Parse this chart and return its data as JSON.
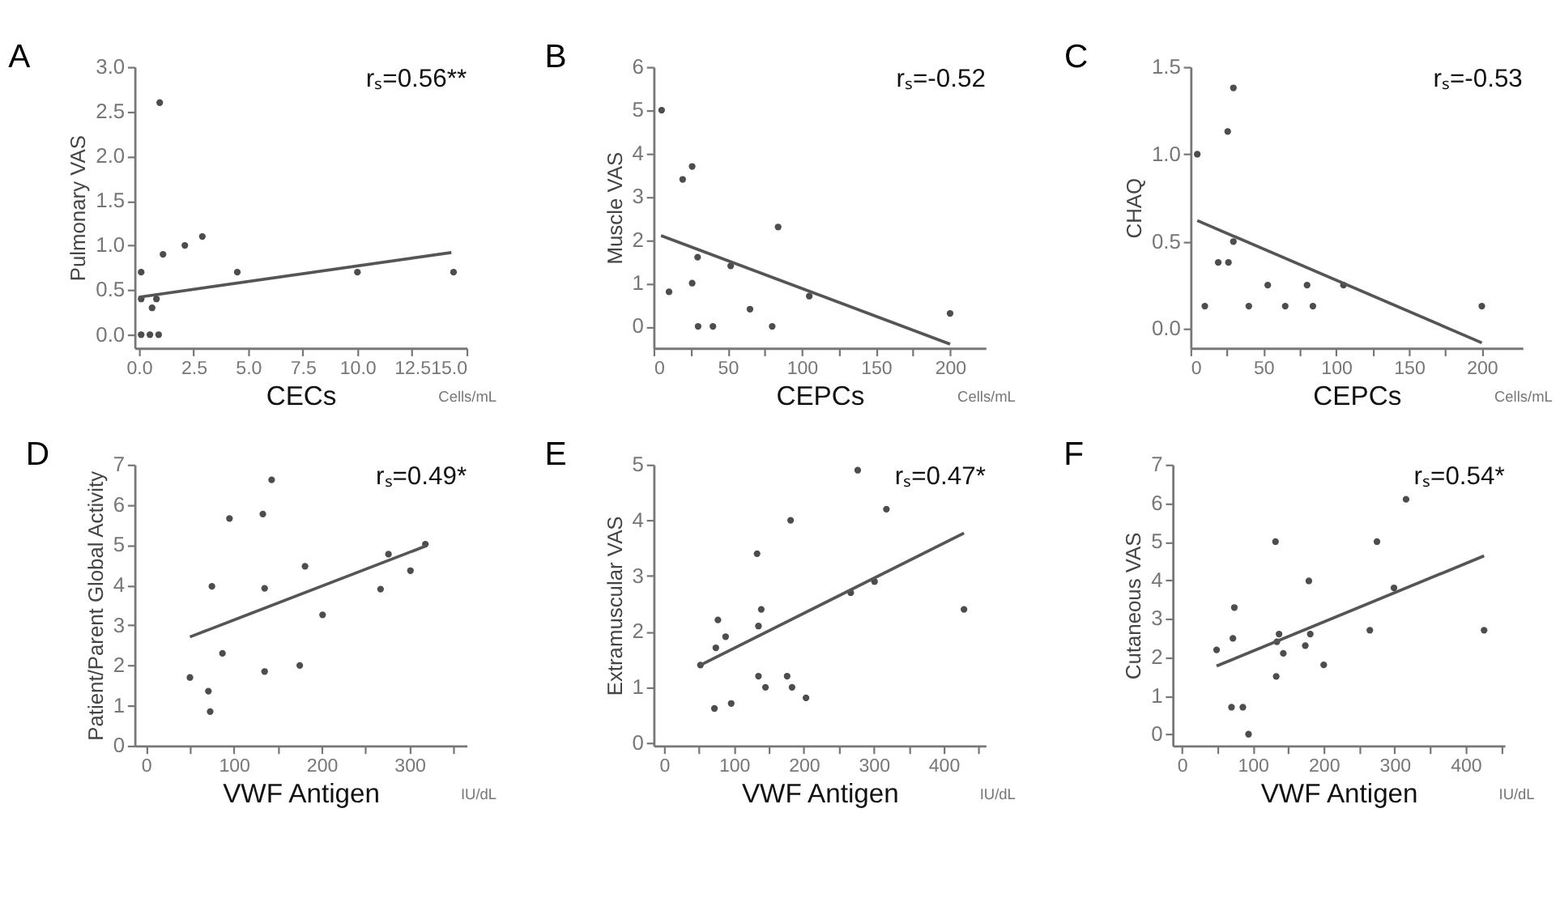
{
  "chart_data": [
    {
      "type": "scatter",
      "title": "A",
      "xlabel": "CECs",
      "ylabel": "Pulmonary VAS",
      "annotations": [
        "rₛ=0.56**",
        "Cells/mL"
      ],
      "marker": "circle",
      "grid": false,
      "xlim": [
        -0.2,
        15
      ],
      "xticks": [
        {
          "value": 0,
          "label": "0.0"
        },
        2.5,
        {
          "value": 5,
          "label": "5.0"
        },
        7.5,
        {
          "value": 10,
          "label": "10.0"
        },
        12.5,
        {
          "value": 15,
          "label": "15.0"
        }
      ],
      "ylim": [
        -0.15,
        3.0
      ],
      "yticks": [
        {
          "value": 0,
          "label": "0.0"
        },
        0.5,
        {
          "value": 1,
          "label": "1.0"
        },
        1.5,
        {
          "value": 2,
          "label": "2.0"
        },
        2.5,
        {
          "value": 3,
          "label": "3.0"
        }
      ],
      "series": [
        {
          "color": "#4d4d4d",
          "x": [
            0.1,
            0.1,
            0.1,
            0.5,
            0.6,
            0.9,
            0.8,
            0.95,
            1.1,
            2.1,
            2.9,
            4.5,
            10.0,
            14.4
          ],
          "values": [
            0.7,
            0.4,
            0,
            0,
            0.3,
            0,
            0.4,
            2.6,
            0.9,
            1.0,
            1.1,
            0.7,
            0.7,
            0.7
          ]
        },
        {
          "type": "line",
          "marker": "none",
          "color": "#555555",
          "x": [
            0,
            14.3
          ],
          "values": [
            0.42,
            0.92
          ]
        }
      ]
    },
    {
      "type": "scatter",
      "title": "B",
      "xlabel": "CEPCs",
      "ylabel": "Muscle VAS",
      "annotations": [
        "rₛ=-0.52",
        "Cells/mL"
      ],
      "marker": "circle",
      "grid": false,
      "xlim": [
        0,
        224
      ],
      "xticks": [
        0,
        {
          "value": 25,
          "label": null
        },
        50,
        {
          "value": 75,
          "label": null
        },
        100,
        {
          "value": 125,
          "label": null
        },
        150,
        {
          "value": 175,
          "label": null
        },
        200
      ],
      "ylim": [
        -0.5,
        6
      ],
      "yticks": [
        0,
        1,
        2,
        3,
        4,
        5,
        6
      ],
      "series": [
        {
          "color": "#4d4d4d",
          "x": [
            5.4,
            10.4,
            19.6,
            26,
            26,
            29.7,
            30,
            40,
            52,
            65,
            80,
            84,
            105,
            200
          ],
          "values": [
            5.0,
            0.8,
            3.4,
            3.7,
            1.0,
            1.6,
            0,
            0,
            1.4,
            0.4,
            0,
            2.3,
            0.7,
            0.3
          ]
        },
        {
          "type": "line",
          "marker": "none",
          "color": "#555555",
          "x": [
            5,
            200
          ],
          "values": [
            2.1,
            -0.41
          ]
        }
      ]
    },
    {
      "type": "scatter",
      "title": "C",
      "xlabel": "CEPCs",
      "ylabel": "CHAQ",
      "annotations": [
        "rₛ=-0.53",
        "Cells/mL"
      ],
      "marker": "circle",
      "grid": false,
      "xlim": [
        0,
        228
      ],
      "xticks": [
        0,
        {
          "value": 25,
          "label": null
        },
        50,
        {
          "value": 75,
          "label": null
        },
        100,
        {
          "value": 125,
          "label": null
        },
        150,
        {
          "value": 175,
          "label": null
        },
        200
      ],
      "ylim": [
        -0.11,
        1.5
      ],
      "yticks": [
        {
          "value": 0,
          "label": "0.0"
        },
        0.5,
        {
          "value": 1,
          "label": "1.0"
        },
        1.5
      ],
      "series": [
        {
          "color": "#4d4d4d",
          "x": [
            4.6,
            9.8,
            19,
            26,
            25.5,
            29.4,
            29.4,
            40,
            53,
            65,
            80,
            84,
            105,
            200
          ],
          "values": [
            1.0,
            0.13,
            0.38,
            0.38,
            1.13,
            1.38,
            0.5,
            0.13,
            0.25,
            0.13,
            0.25,
            0.13,
            0.25,
            0.13
          ]
        },
        {
          "type": "line",
          "marker": "none",
          "color": "#555555",
          "x": [
            4.6,
            200
          ],
          "values": [
            0.62,
            -0.08
          ]
        }
      ]
    },
    {
      "type": "scatter",
      "title": "D",
      "xlabel": "VWF Antigen",
      "ylabel": "Patient/Parent Global Activity",
      "annotations": [
        "rₛ=0.49*",
        "IU/dL"
      ],
      "marker": "circle",
      "grid": false,
      "xlim": [
        -13,
        365
      ],
      "xticks": [
        0,
        {
          "value": 50,
          "label": null
        },
        100,
        {
          "value": 150,
          "label": null
        },
        200,
        {
          "value": 250,
          "label": null
        },
        300,
        {
          "value": 350,
          "label": null
        }
      ],
      "ylim": [
        0,
        7
      ],
      "yticks": [
        0,
        1,
        2,
        3,
        4,
        5,
        6,
        7
      ],
      "series": [
        {
          "color": "#4d4d4d",
          "x": [
            50,
            71,
            73,
            75,
            87,
            95,
            133,
            143,
            135,
            135,
            175,
            181,
            201,
            267,
            276,
            301,
            318
          ],
          "values": [
            1.7,
            1.36,
            0.85,
            3.97,
            2.3,
            5.66,
            5.77,
            6.62,
            3.92,
            1.85,
            2.0,
            4.47,
            3.26,
            3.9,
            4.77,
            4.36,
            5.02
          ]
        },
        {
          "type": "line",
          "marker": "none",
          "color": "#555555",
          "x": [
            50,
            318
          ],
          "values": [
            2.71,
            4.97
          ]
        }
      ]
    },
    {
      "type": "scatter",
      "title": "E",
      "xlabel": "VWF Antigen",
      "ylabel": "Extramuscular VAS",
      "annotations": [
        "rₛ=0.47*",
        "IU/dL"
      ],
      "marker": "circle",
      "grid": false,
      "xlim": [
        -15,
        460
      ],
      "xticks": [
        0,
        {
          "value": 50,
          "label": null
        },
        100,
        {
          "value": 150,
          "label": null
        },
        200,
        {
          "value": 250,
          "label": null
        },
        300,
        {
          "value": 350,
          "label": null
        },
        400,
        {
          "value": 450,
          "label": null
        }
      ],
      "ylim": [
        -0.05,
        5
      ],
      "yticks": [
        0,
        1,
        2,
        3,
        4,
        5
      ],
      "series": [
        {
          "color": "#4d4d4d",
          "x": [
            52,
            72,
            74,
            77,
            88,
            96,
            133,
            135,
            135,
            139,
            145,
            176,
            181,
            183,
            203,
            267,
            277,
            301,
            318,
            429
          ],
          "values": [
            1.4,
            0.62,
            1.71,
            2.21,
            1.91,
            0.71,
            3.4,
            2.1,
            1.2,
            2.4,
            1.0,
            1.2,
            4.0,
            1.0,
            0.81,
            2.7,
            4.9,
            2.9,
            4.2,
            2.4
          ]
        },
        {
          "type": "line",
          "marker": "none",
          "color": "#555555",
          "x": [
            52,
            429
          ],
          "values": [
            1.4,
            3.77
          ]
        }
      ]
    },
    {
      "type": "scatter",
      "title": "F",
      "xlabel": "VWF Antigen",
      "ylabel": "Cutaneous VAS",
      "annotations": [
        "rₛ=0.54*",
        "IU/dL"
      ],
      "marker": "circle",
      "grid": false,
      "xlim": [
        -13,
        455
      ],
      "xticks": [
        0,
        {
          "value": 50,
          "label": null
        },
        100,
        {
          "value": 150,
          "label": null
        },
        200,
        {
          "value": 250,
          "label": null
        },
        300,
        {
          "value": 350,
          "label": null
        },
        400,
        {
          "value": 450,
          "label": null
        }
      ],
      "ylim": [
        -0.3,
        7
      ],
      "yticks": [
        0,
        1,
        2,
        3,
        4,
        5,
        6,
        7
      ],
      "series": [
        {
          "color": "#4d4d4d",
          "x": [
            49,
            70,
            72,
            74,
            86,
            94,
            132,
            133,
            134,
            137,
            143,
            174,
            179,
            181,
            200,
            265,
            275,
            299,
            316,
            426
          ],
          "values": [
            2.19,
            0.7,
            2.49,
            3.29,
            0.7,
            0,
            5.0,
            1.5,
            2.4,
            2.6,
            2.1,
            2.3,
            3.98,
            2.6,
            1.8,
            2.7,
            5.0,
            3.8,
            6.1,
            2.7
          ]
        },
        {
          "type": "line",
          "marker": "none",
          "color": "#555555",
          "x": [
            49,
            426
          ],
          "values": [
            1.77,
            4.63
          ]
        }
      ]
    }
  ]
}
